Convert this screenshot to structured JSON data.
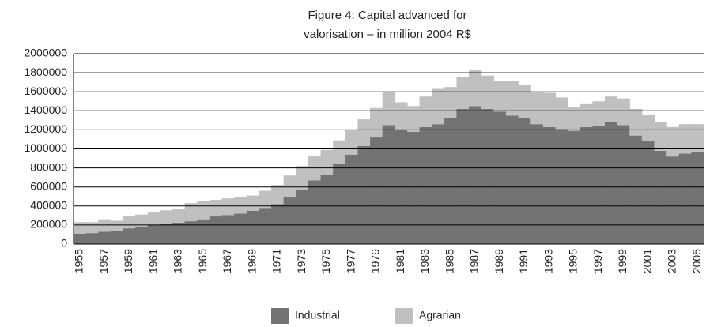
{
  "chart_data": {
    "type": "bar",
    "stacked": true,
    "title": [
      "Figure 4: Capital advanced for",
      "valorisation  –  in million 2004 R$"
    ],
    "categories": [
      "1955",
      null,
      "1957",
      null,
      "1959",
      null,
      "1961",
      null,
      "1963",
      null,
      "1965",
      null,
      "1967",
      null,
      "1969",
      null,
      "1971",
      null,
      "1973",
      null,
      "1975",
      null,
      "1977",
      null,
      "1979",
      null,
      "1981",
      null,
      "1983",
      null,
      "1985",
      null,
      "1987",
      null,
      "1989",
      null,
      "1991",
      null,
      "1993",
      null,
      "1995",
      null,
      "1997",
      null,
      "1999",
      null,
      "2001",
      null,
      "2003",
      null,
      "2005"
    ],
    "series": [
      {
        "name": "Industrial",
        "color": "#737373",
        "values": [
          110000,
          115000,
          130000,
          135000,
          165000,
          180000,
          200000,
          210000,
          225000,
          240000,
          260000,
          290000,
          305000,
          320000,
          350000,
          380000,
          420000,
          490000,
          570000,
          670000,
          730000,
          840000,
          940000,
          1030000,
          1120000,
          1250000,
          1200000,
          1180000,
          1230000,
          1260000,
          1320000,
          1420000,
          1450000,
          1420000,
          1390000,
          1350000,
          1320000,
          1260000,
          1230000,
          1210000,
          1190000,
          1230000,
          1240000,
          1280000,
          1250000,
          1140000,
          1080000,
          980000,
          920000,
          950000,
          970000
        ]
      },
      {
        "name": "Agrarian",
        "color": "#c0c0c0",
        "values": [
          120000,
          115000,
          130000,
          110000,
          125000,
          130000,
          140000,
          145000,
          145000,
          190000,
          190000,
          175000,
          175000,
          175000,
          160000,
          180000,
          200000,
          230000,
          250000,
          260000,
          260000,
          250000,
          260000,
          280000,
          310000,
          350000,
          290000,
          270000,
          320000,
          370000,
          330000,
          340000,
          380000,
          350000,
          320000,
          360000,
          350000,
          340000,
          360000,
          330000,
          250000,
          240000,
          260000,
          270000,
          280000,
          280000,
          280000,
          300000,
          310000,
          310000,
          290000
        ]
      }
    ],
    "ylim": [
      0,
      2000000
    ],
    "yticks": [
      0,
      200000,
      400000,
      600000,
      800000,
      1000000,
      1200000,
      1400000,
      1600000,
      1800000,
      2000000
    ],
    "grid": true
  }
}
